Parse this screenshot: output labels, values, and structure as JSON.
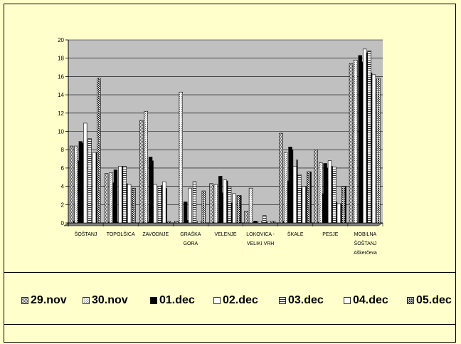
{
  "chart_data": {
    "type": "bar",
    "title": "",
    "xlabel": "",
    "ylabel": "",
    "ylim": [
      0,
      20
    ],
    "yticks": [
      0,
      2,
      4,
      6,
      8,
      10,
      12,
      14,
      16,
      18,
      20
    ],
    "grid": true,
    "legend_position": "bottom",
    "categories": [
      [
        "ŠOŠTANJ"
      ],
      [
        "TOPOLŠICA"
      ],
      [
        "ZAVODNJE"
      ],
      [
        "GRAŠKA",
        "GORA"
      ],
      [
        "VELENJE"
      ],
      [
        "LOKOVICA -",
        "VELIKI VRH"
      ],
      [
        "ŠKALE"
      ],
      [
        "PESJE"
      ],
      [
        "MOBILNA",
        "ŠOŠTANJ",
        "Aškerčeva"
      ]
    ],
    "series": [
      {
        "name": "29.nov",
        "values": [
          8.4,
          5.4,
          11.2,
          0.2,
          4.3,
          1.3,
          9.8,
          8.0,
          17.4
        ]
      },
      {
        "name": "30.nov",
        "values": [
          8.4,
          5.5,
          12.2,
          14.3,
          4.2,
          3.8,
          7.7,
          6.6,
          17.8
        ]
      },
      {
        "name": "01.dec",
        "values": [
          8.9,
          5.8,
          7.2,
          2.3,
          5.1,
          0.2,
          8.3,
          6.5,
          18.3
        ]
      },
      {
        "name": "02.dec",
        "values": [
          10.9,
          6.2,
          4.2,
          3.8,
          4.7,
          0.2,
          6.2,
          6.8,
          19.0
        ]
      },
      {
        "name": "03.dec",
        "values": [
          9.2,
          6.2,
          4.0,
          4.5,
          3.9,
          0.8,
          5.3,
          6.1,
          18.8
        ]
      },
      {
        "name": "04.dec",
        "values": [
          7.7,
          4.2,
          4.5,
          0.2,
          3.2,
          0.2,
          4.0,
          2.1,
          16.2
        ]
      },
      {
        "name": "05.dec",
        "values": [
          15.8,
          3.8,
          0.2,
          3.5,
          3.0,
          0.2,
          5.6,
          4.0,
          15.8
        ]
      }
    ],
    "series_inner_values": [
      [
        0.2,
        0.1,
        0.1,
        0.0,
        0.1,
        0.0,
        0.2,
        0.1,
        0.0
      ],
      [
        6.8,
        4.4,
        0.1,
        0.0,
        0.1,
        0.0,
        4.6,
        3.2,
        0.0
      ],
      [
        8.7,
        0.1,
        6.8,
        0.3,
        3.3,
        0.0,
        8.0,
        6.0,
        17.6
      ],
      [
        0.0,
        6.2,
        0.0,
        0.0,
        4.6,
        0.0,
        6.9,
        6.2,
        18.6
      ],
      [
        0.0,
        4.3,
        4.1,
        0.0,
        2.2,
        0.1,
        3.8,
        2.3,
        16.4
      ],
      [
        7.7,
        0.0,
        3.8,
        0.0,
        0.0,
        0.0,
        4.0,
        2.1,
        0.0
      ],
      [
        0.0,
        0.0,
        0.0,
        0.0,
        3.0,
        0.0,
        5.6,
        4.0,
        0.0
      ]
    ]
  },
  "legend": [
    {
      "label": "29.nov",
      "pattern": "dense-dots"
    },
    {
      "label": "30.nov",
      "pattern": "light-dots"
    },
    {
      "label": "01.dec",
      "pattern": "black"
    },
    {
      "label": "02.dec",
      "pattern": "white"
    },
    {
      "label": "03.dec",
      "pattern": "hstripes"
    },
    {
      "label": "04.dec",
      "pattern": "white"
    },
    {
      "label": "05.dec",
      "pattern": "checker"
    }
  ],
  "colors": {
    "page_bg": "#ffffcc",
    "plot_bg": "#c0c0c0",
    "grid": "#000000"
  }
}
